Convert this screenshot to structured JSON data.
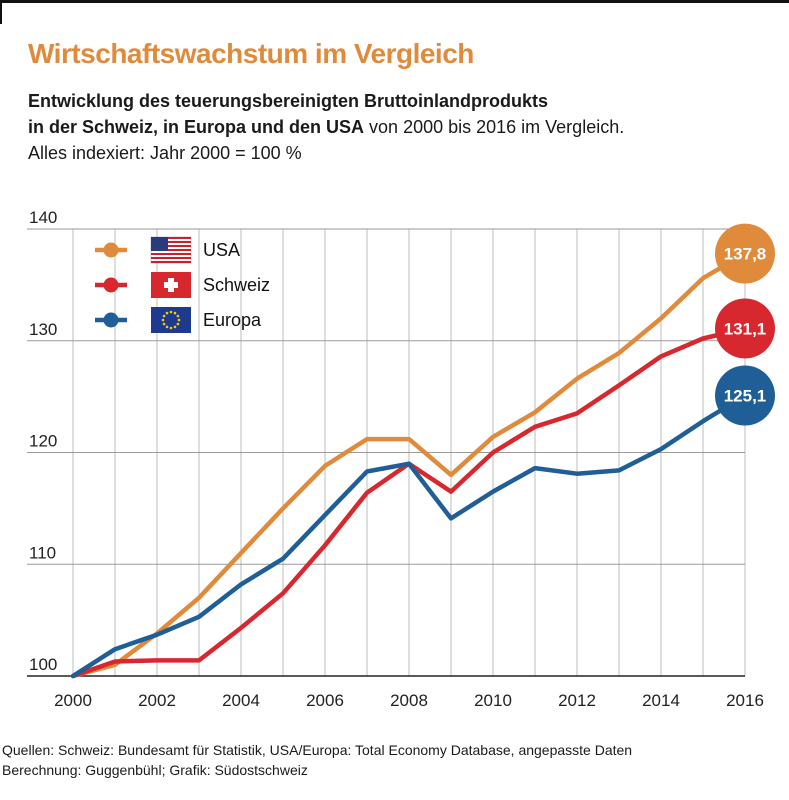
{
  "header": {
    "title": "Wirtschaftswachstum im Vergleich",
    "subtitle_bold_1": "Entwicklung des teuerungsbereinigten Bruttoinlandprodukts",
    "subtitle_bold_2": "in der Schweiz, in Europa und den USA",
    "subtitle_tail": " von 2000 bis 2016 im Vergleich.",
    "subtitle_line3": "Alles indexiert: Jahr 2000 = 100 %"
  },
  "footer": {
    "source_line1": "Quellen: Schweiz: Bundesamt für Statistik, USA/Europa: Total Economy Database, angepasste Daten",
    "source_line2": "Berechnung: Guggenbühl; Grafik: Südostschweiz"
  },
  "chart_data": {
    "type": "line",
    "title": "Wirtschaftswachstum im Vergleich",
    "xlabel": "",
    "ylabel": "",
    "x": [
      2000,
      2001,
      2002,
      2003,
      2004,
      2005,
      2006,
      2007,
      2008,
      2009,
      2010,
      2011,
      2012,
      2013,
      2014,
      2015,
      2016
    ],
    "xticks": [
      "2000",
      "2002",
      "2004",
      "2006",
      "2008",
      "2010",
      "2012",
      "2014",
      "2016"
    ],
    "yticks": [
      "100",
      "110",
      "120",
      "130",
      "140"
    ],
    "xlim": [
      2000,
      2016
    ],
    "ylim": [
      100,
      140
    ],
    "grid": true,
    "legend_position": "top-left",
    "series": [
      {
        "name": "USA",
        "color": "#e08a3c",
        "flag": "us-flag-icon",
        "end_label": "137,8",
        "values": [
          100,
          101.0,
          103.8,
          107.0,
          111.0,
          115.0,
          118.8,
          121.2,
          121.2,
          118.0,
          121.4,
          123.6,
          126.6,
          128.9,
          132.0,
          135.6,
          137.8
        ]
      },
      {
        "name": "Schweiz",
        "color": "#d7282f",
        "flag": "swiss-flag-icon",
        "end_label": "131,1",
        "values": [
          100,
          101.3,
          101.4,
          101.4,
          104.3,
          107.4,
          111.7,
          116.4,
          119.0,
          116.5,
          120.0,
          122.3,
          123.5,
          126.0,
          128.6,
          130.2,
          131.1
        ]
      },
      {
        "name": "Europa",
        "color": "#1f5e96",
        "flag": "eu-flag-icon",
        "end_label": "125,1",
        "values": [
          100,
          102.4,
          103.7,
          105.3,
          108.2,
          110.5,
          114.4,
          118.3,
          119.0,
          114.1,
          116.5,
          118.6,
          118.1,
          118.4,
          120.3,
          122.8,
          125.1
        ]
      }
    ]
  }
}
